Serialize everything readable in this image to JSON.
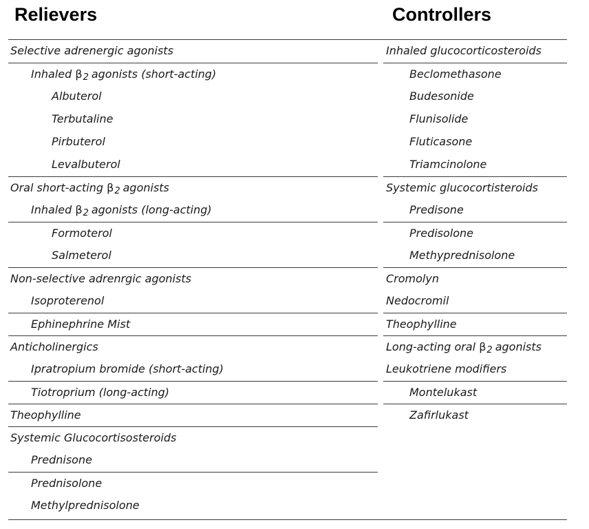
{
  "headings": {
    "relievers": "Relievers",
    "controllers": "Controllers"
  },
  "relievers": [
    {
      "text": "Selective adrenergic agonists",
      "level": 0,
      "sep": true
    },
    {
      "text": "Inhaled β2 agonists (short-acting)",
      "level": 1,
      "sep": true,
      "pre": "Inhaled ",
      "post": " agonists (short-acting)"
    },
    {
      "text": "Albuterol",
      "level": 2,
      "sep": false
    },
    {
      "text": "Terbutaline",
      "level": 2,
      "sep": false
    },
    {
      "text": "Pirbuterol",
      "level": 2,
      "sep": false
    },
    {
      "text": "Levalbuterol",
      "level": 2,
      "sep": false
    },
    {
      "text": "Oral short-acting β2 agonists",
      "level": 0,
      "sep": true,
      "pre": "Oral short-acting ",
      "post": " agonists"
    },
    {
      "text": "Inhaled β2 agonists (long-acting)",
      "level": 1,
      "sep": false,
      "pre": "Inhaled ",
      "post": " agonists (long-acting)"
    },
    {
      "text": "Formoterol",
      "level": 2,
      "sep": true
    },
    {
      "text": "Salmeterol",
      "level": 2,
      "sep": false
    },
    {
      "text": "Non-selective adrenrgic agonists",
      "level": 0,
      "sep": true
    },
    {
      "text": "Isoproterenol",
      "level": 1,
      "sep": false
    },
    {
      "text": "Ephinephrine Mist",
      "level": 1,
      "sep": true
    },
    {
      "text": "Anticholinergics",
      "level": 0,
      "sep": true
    },
    {
      "text": "Ipratropium bromide (short-acting)",
      "level": 1,
      "sep": false
    },
    {
      "text": "Tiotroprium (long-acting)",
      "level": 1,
      "sep": true
    },
    {
      "text": "Theophylline",
      "level": 0,
      "sep": true
    },
    {
      "text": "Systemic Glucocortisosteroids",
      "level": 0,
      "sep": true
    },
    {
      "text": "Prednisone",
      "level": 1,
      "sep": false
    },
    {
      "text": "Prednisolone",
      "level": 1,
      "sep": true
    },
    {
      "text": "Methylprednisolone",
      "level": 1,
      "sep": false
    }
  ],
  "controllers": [
    {
      "text": "Inhaled glucocorticosteroids",
      "level": 0,
      "sep": true
    },
    {
      "text": "Beclomethasone",
      "level": 1,
      "sep": true
    },
    {
      "text": "Budesonide",
      "level": 1,
      "sep": false
    },
    {
      "text": "Flunisolide",
      "level": 1,
      "sep": false
    },
    {
      "text": "Fluticasone",
      "level": 1,
      "sep": false
    },
    {
      "text": "Triamcinolone",
      "level": 1,
      "sep": false
    },
    {
      "text": "Systemic glucocortisteroids",
      "level": 0,
      "sep": true
    },
    {
      "text": "Predisone",
      "level": 1,
      "sep": false
    },
    {
      "text": "Predisolone",
      "level": 1,
      "sep": true
    },
    {
      "text": "Methyprednisolone",
      "level": 1,
      "sep": false
    },
    {
      "text": "Cromolyn",
      "level": 0,
      "sep": true
    },
    {
      "text": "Nedocromil",
      "level": 0,
      "sep": false
    },
    {
      "text": "Theophylline",
      "level": 0,
      "sep": true
    },
    {
      "text": "Long-acting oral β2 agonists",
      "level": 0,
      "sep": true,
      "pre": "Long-acting oral ",
      "post": " agonists"
    },
    {
      "text": "Leukotriene modifiers",
      "level": 0,
      "sep": false
    },
    {
      "text": "Montelukast",
      "level": 1,
      "sep": true
    },
    {
      "text": "Zafirlukast",
      "level": 1,
      "sep": true
    }
  ]
}
